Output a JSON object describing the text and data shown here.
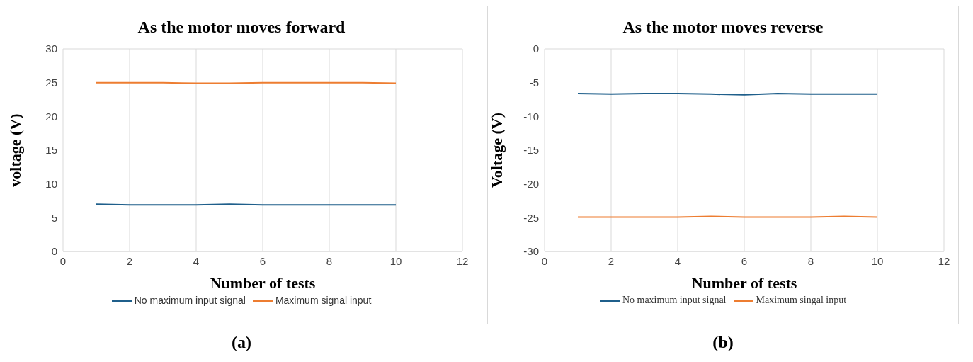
{
  "chart_data": [
    {
      "type": "line",
      "title": "As the motor moves forward",
      "xlabel": "Number of tests",
      "ylabel": "voltage (V)",
      "x": [
        1,
        2,
        3,
        4,
        5,
        6,
        7,
        8,
        9,
        10
      ],
      "xlim": [
        0,
        12
      ],
      "xticks": [
        0,
        2,
        4,
        6,
        8,
        10,
        12
      ],
      "ylim": [
        0,
        30
      ],
      "yticks": [
        0,
        5,
        10,
        15,
        20,
        25,
        30
      ],
      "grid": true,
      "legend": "bottom",
      "marker": "none",
      "annotations": [
        "(a)"
      ],
      "series": [
        {
          "name": "No maximum input signal",
          "color": "#1f5f8b",
          "values": [
            7.0,
            6.9,
            6.9,
            6.9,
            7.0,
            6.9,
            6.9,
            6.9,
            6.9,
            6.9
          ]
        },
        {
          "name": "Maximum signal input",
          "color": "#ed7d31",
          "values": [
            25.0,
            25.0,
            25.0,
            24.9,
            24.9,
            25.0,
            25.0,
            25.0,
            25.0,
            24.9
          ]
        }
      ]
    },
    {
      "type": "line",
      "title": "As the motor moves reverse",
      "xlabel": "Number of tests",
      "ylabel": "Voltage (V)",
      "x": [
        1,
        2,
        3,
        4,
        5,
        6,
        7,
        8,
        9,
        10
      ],
      "xlim": [
        0,
        12
      ],
      "xticks": [
        0,
        2,
        4,
        6,
        8,
        10,
        12
      ],
      "ylim": [
        -30,
        0
      ],
      "yticks": [
        -30,
        -25,
        -20,
        -15,
        -10,
        -5,
        0
      ],
      "grid": true,
      "legend": "bottom",
      "marker": "none",
      "annotations": [
        "(b)"
      ],
      "series": [
        {
          "name": "No maximum input signal",
          "color": "#1f5f8b",
          "values": [
            -6.6,
            -6.7,
            -6.6,
            -6.6,
            -6.7,
            -6.8,
            -6.6,
            -6.7,
            -6.7,
            -6.7
          ]
        },
        {
          "name": "Maximum singal input",
          "color": "#ed7d31",
          "values": [
            -24.9,
            -24.9,
            -24.9,
            -24.9,
            -24.8,
            -24.9,
            -24.9,
            -24.9,
            -24.8,
            -24.9
          ]
        }
      ]
    }
  ]
}
